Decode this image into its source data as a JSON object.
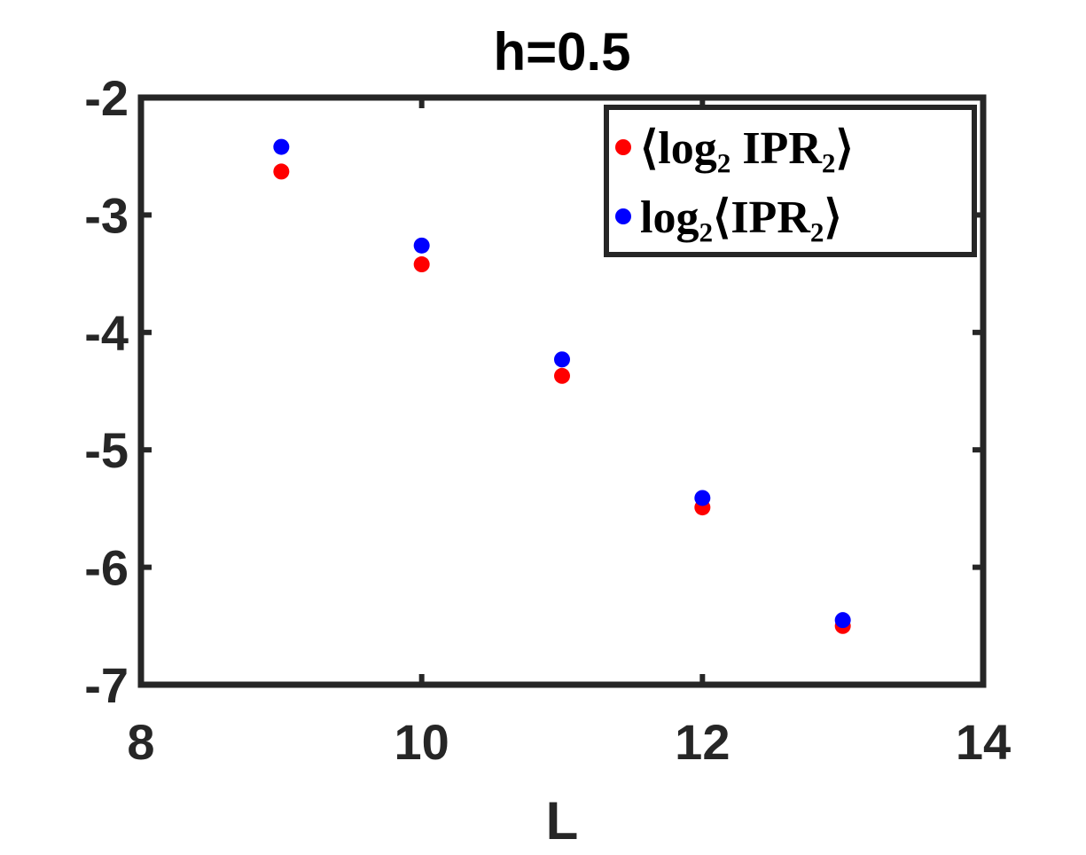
{
  "chart_data": {
    "type": "scatter",
    "title": "h=0.5",
    "xlabel": "L",
    "ylabel": "",
    "xlim": [
      8,
      14
    ],
    "ylim": [
      -7,
      -2
    ],
    "xticks": [
      8,
      10,
      12,
      14
    ],
    "yticks": [
      -2,
      -3,
      -4,
      -5,
      -6,
      -7
    ],
    "grid": false,
    "legend_position": "top-right",
    "series": [
      {
        "name": "⟨log₂ IPR₂⟩",
        "color": "#ff0000",
        "x": [
          9,
          10,
          11,
          12,
          13
        ],
        "y": [
          -2.63,
          -3.42,
          -4.37,
          -5.49,
          -6.5
        ]
      },
      {
        "name": "log₂⟨IPR₂⟩",
        "color": "#0000ff",
        "x": [
          9,
          10,
          11,
          12,
          13
        ],
        "y": [
          -2.42,
          -3.26,
          -4.23,
          -5.41,
          -6.45
        ]
      }
    ]
  }
}
